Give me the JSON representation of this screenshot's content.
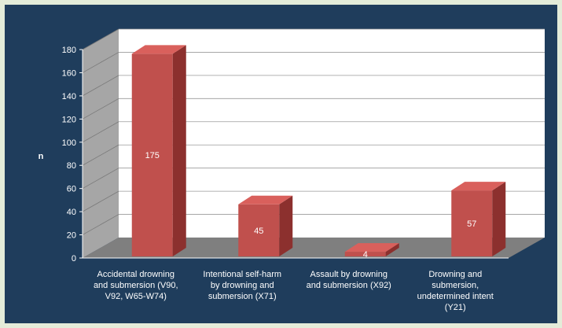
{
  "chart_data": {
    "type": "bar",
    "categories": [
      [
        "Accidental drowning",
        "and submersion (V90,",
        "V92, W65-W74)"
      ],
      [
        "Intentional self-harm",
        "by drowning and",
        "submersion (X71)"
      ],
      [
        "Assault by drowning",
        "and submersion (X92)"
      ],
      [
        "Drowning and",
        "submersion,",
        "undetermined intent",
        "(Y21)"
      ]
    ],
    "values": [
      175,
      45,
      4,
      57
    ],
    "data_labels": [
      "175",
      "45",
      "4",
      "57"
    ],
    "title": "",
    "xlabel": "",
    "ylabel": "n",
    "ylim": [
      0,
      180
    ],
    "yticks": [
      "0",
      "20",
      "40",
      "60",
      "80",
      "100",
      "120",
      "140",
      "160",
      "180"
    ],
    "grid": true,
    "legend": "none",
    "style": "3d-bar",
    "colors": {
      "bar_front": "#c0504d",
      "bar_side": "#8c302e",
      "bar_top": "#d9605c",
      "back_wall": "#ffffff",
      "side_wall": "#a6a6a6",
      "floor": "#7f7f7f",
      "background": "#1f3d5c",
      "border": "#e4ecd9"
    }
  }
}
